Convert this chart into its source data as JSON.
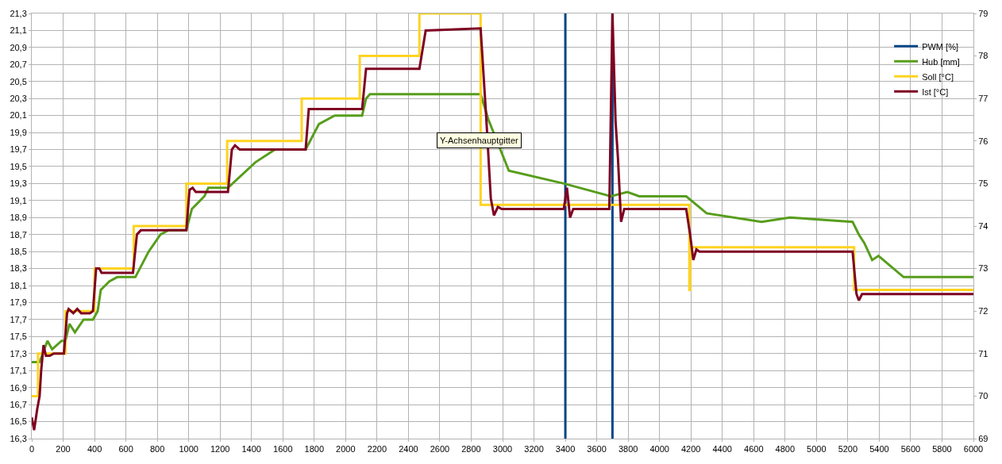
{
  "chart_data": {
    "type": "line",
    "xlim": [
      0,
      6000
    ],
    "xticks": [
      0,
      200,
      400,
      600,
      800,
      1000,
      1200,
      1400,
      1600,
      1800,
      2000,
      2200,
      2400,
      2600,
      2800,
      3000,
      3200,
      3400,
      3600,
      3800,
      4000,
      4200,
      4400,
      4600,
      4800,
      5000,
      5200,
      5400,
      5600,
      5800,
      6000
    ],
    "ylim": [
      16.3,
      21.3
    ],
    "yticks": [
      {
        "value": 16.3,
        "label": "16,3"
      },
      {
        "value": 16.5,
        "label": "16,5"
      },
      {
        "value": 16.7,
        "label": "16,7"
      },
      {
        "value": 16.9,
        "label": "16,9"
      },
      {
        "value": 17.1,
        "label": "17,1"
      },
      {
        "value": 17.3,
        "label": "17,3"
      },
      {
        "value": 17.5,
        "label": "17,5"
      },
      {
        "value": 17.7,
        "label": "17,7"
      },
      {
        "value": 17.9,
        "label": "17,9"
      },
      {
        "value": 18.1,
        "label": "18,1"
      },
      {
        "value": 18.3,
        "label": "18,3"
      },
      {
        "value": 18.5,
        "label": "18,5"
      },
      {
        "value": 18.7,
        "label": "18,7"
      },
      {
        "value": 18.9,
        "label": "18,9"
      },
      {
        "value": 19.1,
        "label": "19,1"
      },
      {
        "value": 19.3,
        "label": "19,3"
      },
      {
        "value": 19.5,
        "label": "19,5"
      },
      {
        "value": 19.7,
        "label": "19,7"
      },
      {
        "value": 19.9,
        "label": "19,9"
      },
      {
        "value": 20.1,
        "label": "20,1"
      },
      {
        "value": 20.3,
        "label": "20,3"
      },
      {
        "value": 20.5,
        "label": "20,5"
      },
      {
        "value": 20.7,
        "label": "20,7"
      },
      {
        "value": 20.9,
        "label": "20,9"
      },
      {
        "value": 21.1,
        "label": "21,1"
      },
      {
        "value": 21.3,
        "label": "21,3"
      }
    ],
    "y2lim": [
      69,
      79
    ],
    "y2ticks": [
      69,
      70,
      71,
      72,
      73,
      74,
      75,
      76,
      77,
      78,
      79
    ],
    "grid": true,
    "legend": "top right",
    "annotations": [
      "Y-Achsenhauptgitter"
    ],
    "series": [
      {
        "name": "PWM [%]",
        "color": "#004586",
        "axis": "y",
        "x": [
          3400,
          3400,
          3550,
          3700,
          3700
        ],
        "values": [
          16.3,
          21.3,
          null,
          16.3,
          21.3
        ]
      },
      {
        "name": "Hub [mm]",
        "color": "#579d1c",
        "axis": "y",
        "x": [
          0,
          50,
          100,
          130,
          190,
          215,
          240,
          275,
          330,
          390,
          420,
          440,
          495,
          545,
          660,
          745,
          820,
          870,
          985,
          1020,
          1100,
          1125,
          1250,
          1425,
          1550,
          1745,
          1830,
          1930,
          2105,
          2130,
          2155,
          2860,
          2910,
          3040,
          3390,
          3690,
          3795,
          3870,
          4170,
          4300,
          4650,
          4830,
          5230,
          5270,
          5305,
          5355,
          5395,
          5555,
          6000
        ],
        "values": [
          17.2,
          17.2,
          17.45,
          17.35,
          17.45,
          17.45,
          17.65,
          17.55,
          17.7,
          17.7,
          17.8,
          18.05,
          18.15,
          18.2,
          18.2,
          18.5,
          18.7,
          18.75,
          18.75,
          19.0,
          19.15,
          19.25,
          19.25,
          19.55,
          19.7,
          19.7,
          20.0,
          20.1,
          20.1,
          20.3,
          20.35,
          20.35,
          20.05,
          19.45,
          19.3,
          19.15,
          19.2,
          19.15,
          19.15,
          18.95,
          18.85,
          18.9,
          18.85,
          18.7,
          18.6,
          18.4,
          18.45,
          18.2,
          18.2
        ]
      },
      {
        "name": "Soll [°C]",
        "color": "#ffd320",
        "axis": "y2",
        "type": "step",
        "x": [
          0,
          40,
          215,
          400,
          650,
          985,
          1245,
          1720,
          2090,
          2470,
          2860,
          4185,
          4190,
          4195,
          5240,
          6000
        ],
        "values": [
          70,
          71,
          72,
          73,
          74,
          75,
          76,
          77,
          78,
          79,
          74.5,
          74.5,
          72.5,
          73.5,
          72.5,
          72.5
        ]
      },
      {
        "name": "Ist [°C]",
        "color": "#7e0021",
        "axis": "y2",
        "x": [
          0,
          15,
          35,
          50,
          60,
          75,
          90,
          115,
          140,
          205,
          225,
          235,
          265,
          290,
          315,
          370,
          390,
          410,
          430,
          445,
          645,
          670,
          695,
          985,
          1005,
          1025,
          1045,
          1250,
          1275,
          1295,
          1325,
          1745,
          1765,
          2105,
          2130,
          2470,
          2510,
          2860,
          2895,
          2925,
          2945,
          2970,
          2995,
          3390,
          3410,
          3430,
          3450,
          3680,
          3700,
          3720,
          3735,
          3755,
          3775,
          3795,
          4170,
          4195,
          4215,
          4235,
          4255,
          5230,
          5255,
          5270,
          5290,
          6000
        ],
        "values": [
          69.5,
          69.2,
          69.7,
          70.0,
          70.6,
          71.2,
          70.95,
          70.95,
          71.0,
          71.0,
          71.95,
          72.05,
          71.95,
          72.05,
          71.95,
          71.95,
          72.0,
          73.0,
          73.0,
          72.9,
          72.9,
          73.8,
          73.9,
          73.9,
          74.85,
          74.9,
          74.8,
          74.8,
          75.8,
          75.9,
          75.8,
          75.8,
          76.75,
          76.75,
          77.7,
          77.7,
          78.6,
          78.65,
          76.6,
          74.65,
          74.25,
          74.45,
          74.4,
          74.4,
          74.9,
          74.2,
          74.4,
          74.4,
          79,
          76.45,
          75.6,
          74.1,
          74.4,
          74.4,
          74.4,
          73.8,
          73.2,
          73.45,
          73.4,
          73.4,
          72.4,
          72.25,
          72.4,
          72.4
        ]
      }
    ]
  }
}
